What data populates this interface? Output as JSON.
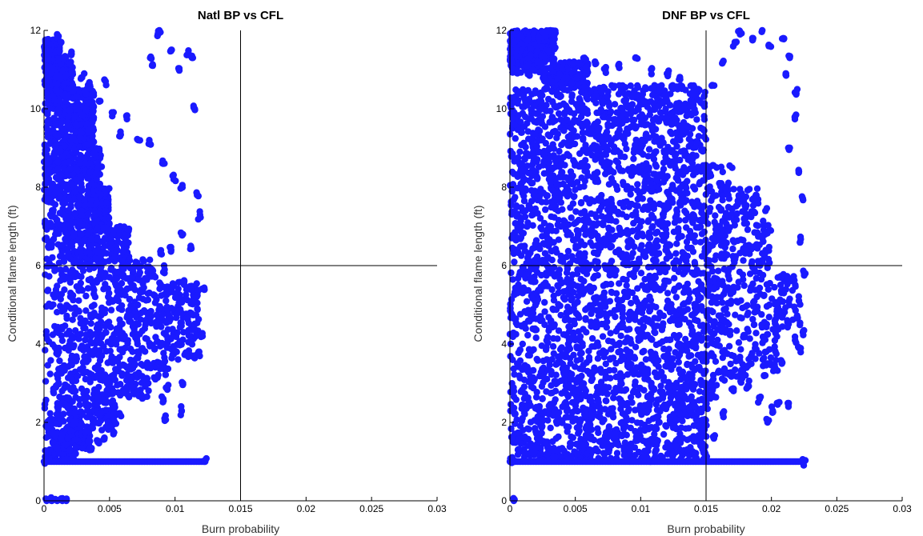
{
  "chart_data": [
    {
      "type": "scatter",
      "title": "Natl BP vs CFL",
      "xlabel": "Burn probability",
      "ylabel": "Conditional flame length (ft)",
      "xlim": [
        0,
        0.03
      ],
      "ylim": [
        0,
        12
      ],
      "xticks": [
        "0",
        "0.005",
        "0.01",
        "0.015",
        "0.02",
        "0.025",
        "0.03"
      ],
      "yticks": [
        "0",
        "2",
        "4",
        "6",
        "8",
        "10",
        "12"
      ],
      "reference_lines": {
        "x": 0.015,
        "y": 6
      },
      "marker_color": "#1a1aff",
      "point_count_approx": 2600,
      "series": [
        {
          "points": [
            [
              0.0003,
              11.5
            ],
            [
              0.001,
              11.9
            ],
            [
              0.0013,
              11.7
            ],
            [
              0.0016,
              11.3
            ],
            [
              0.0021,
              11.4
            ],
            [
              0.0029,
              10.8
            ],
            [
              0.0035,
              10.6
            ],
            [
              0.0042,
              10.2
            ],
            [
              0.0047,
              10.7
            ],
            [
              0.0052,
              9.9
            ],
            [
              0.0058,
              9.3
            ],
            [
              0.0063,
              9.8
            ],
            [
              0.0072,
              9.2
            ],
            [
              0.0081,
              11.3
            ],
            [
              0.0083,
              11.1
            ],
            [
              0.0087,
              11.9
            ],
            [
              0.0088,
              12.0
            ],
            [
              0.0097,
              11.5
            ],
            [
              0.0103,
              11.0
            ],
            [
              0.011,
              11.4
            ],
            [
              0.0113,
              11.3
            ],
            [
              0.0115,
              10.0
            ],
            [
              0.0081,
              9.1
            ],
            [
              0.0091,
              8.6
            ],
            [
              0.0099,
              8.2
            ],
            [
              0.0105,
              8.0
            ],
            [
              0.0117,
              7.8
            ],
            [
              0.0119,
              7.3
            ],
            [
              0.0112,
              6.5
            ],
            [
              0.0106,
              6.8
            ],
            [
              0.0097,
              6.4
            ],
            [
              0.0089,
              6.3
            ],
            [
              0.0092,
              5.9
            ],
            [
              0.0107,
              5.6
            ],
            [
              0.0117,
              5.3
            ],
            [
              0.0122,
              5.4
            ],
            [
              0.0121,
              4.2
            ],
            [
              0.0118,
              3.8
            ],
            [
              0.0111,
              3.7
            ],
            [
              0.0106,
              3.0
            ],
            [
              0.0094,
              2.9
            ],
            [
              0.0091,
              2.6
            ],
            [
              0.0092,
              2.1
            ],
            [
              0.0105,
              2.3
            ],
            [
              0.0085,
              3.1
            ],
            [
              0.0079,
              3.5
            ],
            [
              0.0067,
              3.0
            ],
            [
              0.0061,
              2.8
            ],
            [
              0.0058,
              2.2
            ],
            [
              0.0049,
              2.0
            ],
            [
              0.0046,
              1.6
            ],
            [
              0.0041,
              1.5
            ],
            [
              0.0036,
              1.3
            ],
            [
              0.0053,
              1.7
            ],
            [
              0.0002,
              0.0
            ],
            [
              0.0006,
              0.0
            ],
            [
              0.001,
              0.0
            ],
            [
              0.0014,
              0.0
            ],
            [
              0.0017,
              0.0
            ],
            [
              0.0001,
              1.0
            ],
            [
              0.0123,
              1.0
            ]
          ]
        }
      ]
    },
    {
      "type": "scatter",
      "title": "DNF BP vs CFL",
      "xlabel": "Burn probability",
      "ylabel": "Conditional flame length (ft)",
      "xlim": [
        0,
        0.03
      ],
      "ylim": [
        0,
        12
      ],
      "xticks": [
        "0",
        "0.005",
        "0.01",
        "0.015",
        "0.02",
        "0.025",
        "0.03"
      ],
      "yticks": [
        "0",
        "2",
        "4",
        "6",
        "8",
        "10",
        "12"
      ],
      "reference_lines": {
        "x": 0.015,
        "y": 6
      },
      "marker_color": "#1a1aff",
      "point_count_approx": 4200,
      "series": [
        {
          "points": [
            [
              0.0002,
              11.2
            ],
            [
              0.0006,
              11.4
            ],
            [
              0.0014,
              10.9
            ],
            [
              0.0025,
              11.4
            ],
            [
              0.0029,
              11.9
            ],
            [
              0.0031,
              12.0
            ],
            [
              0.0033,
              11.7
            ],
            [
              0.0027,
              10.5
            ],
            [
              0.0049,
              11.2
            ],
            [
              0.0057,
              11.3
            ],
            [
              0.0065,
              11.2
            ],
            [
              0.0073,
              11.0
            ],
            [
              0.0083,
              11.1
            ],
            [
              0.0096,
              11.3
            ],
            [
              0.0108,
              11.0
            ],
            [
              0.0121,
              10.9
            ],
            [
              0.013,
              10.8
            ],
            [
              0.0142,
              10.4
            ],
            [
              0.0155,
              10.6
            ],
            [
              0.0163,
              11.2
            ],
            [
              0.0172,
              11.7
            ],
            [
              0.0176,
              11.9
            ],
            [
              0.0186,
              11.8
            ],
            [
              0.0193,
              12.0
            ],
            [
              0.0198,
              11.6
            ],
            [
              0.0209,
              11.8
            ],
            [
              0.0214,
              11.3
            ],
            [
              0.0211,
              10.9
            ],
            [
              0.0219,
              10.4
            ],
            [
              0.0218,
              9.8
            ],
            [
              0.0213,
              9.0
            ],
            [
              0.0221,
              8.4
            ],
            [
              0.0224,
              7.7
            ],
            [
              0.0222,
              6.6
            ],
            [
              0.0225,
              5.8
            ],
            [
              0.0224,
              4.3
            ],
            [
              0.0221,
              3.9
            ],
            [
              0.0208,
              3.5
            ],
            [
              0.0195,
              3.2
            ],
            [
              0.0182,
              2.9
            ],
            [
              0.0171,
              2.8
            ],
            [
              0.0163,
              2.2
            ],
            [
              0.0156,
              1.6
            ],
            [
              0.0149,
              1.2
            ],
            [
              0.0191,
              2.6
            ],
            [
              0.0197,
              2.0
            ],
            [
              0.0201,
              2.3
            ],
            [
              0.0205,
              2.5
            ],
            [
              0.0213,
              2.4
            ],
            [
              0.0003,
              0.0
            ],
            [
              0.0001,
              1.0
            ],
            [
              0.0225,
              1.0
            ]
          ]
        }
      ]
    }
  ]
}
